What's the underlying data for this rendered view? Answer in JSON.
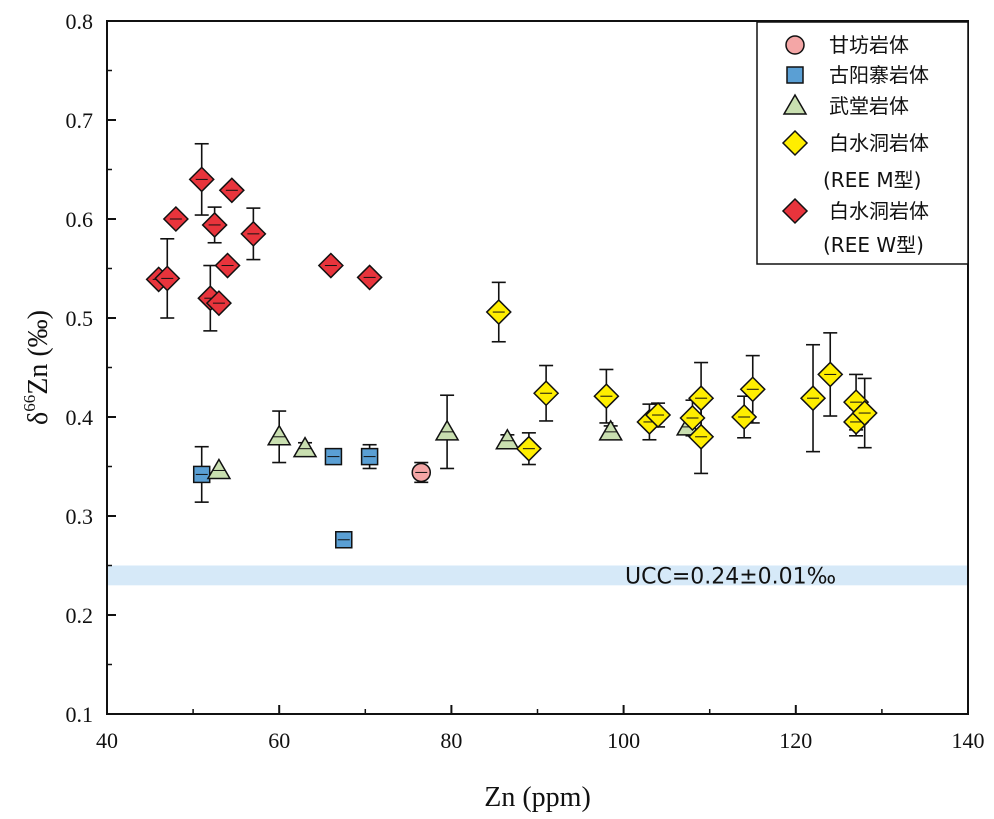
{
  "chart_data": {
    "type": "scatter",
    "xlabel": "Zn (ppm)",
    "ylabel_prefix": "δ",
    "ylabel_sup": "66",
    "ylabel_rest": "Zn (‰)",
    "xlim": [
      40,
      140
    ],
    "ylim": [
      0.1,
      0.8
    ],
    "xticks": [
      40,
      60,
      80,
      100,
      120,
      140
    ],
    "yticks": [
      0.1,
      0.2,
      0.3,
      0.4,
      0.5,
      0.6,
      0.7,
      0.8
    ],
    "xtick_labels": [
      "40",
      "60",
      "80",
      "100",
      "120",
      "140"
    ],
    "ytick_labels": [
      "0.1",
      "0.2",
      "0.3",
      "0.4",
      "0.5",
      "0.6",
      "0.7",
      "0.8"
    ],
    "reference_band": {
      "label": "UCC=0.24±0.01‰",
      "y_low": 0.23,
      "y_high": 0.25,
      "color": "#d6e9f8"
    },
    "series": [
      {
        "name": "甘坊岩体",
        "marker": "circle",
        "color": "#f4a6a6",
        "points": [
          {
            "x": 76.5,
            "y": 0.344,
            "err": 0.01
          }
        ]
      },
      {
        "name": "古阳寨岩体",
        "marker": "square",
        "color": "#5a9fd4",
        "points": [
          {
            "x": 51,
            "y": 0.342,
            "err": 0.028
          },
          {
            "x": 66.3,
            "y": 0.36,
            "err": 0.007
          },
          {
            "x": 70.5,
            "y": 0.36,
            "err": 0.012
          },
          {
            "x": 67.5,
            "y": 0.276,
            "err": 0.007
          }
        ]
      },
      {
        "name": "武堂岩体",
        "marker": "triangle",
        "color": "#c9dfb0",
        "points": [
          {
            "x": 53,
            "y": 0.346,
            "err": 0.0
          },
          {
            "x": 60,
            "y": 0.38,
            "err": 0.026
          },
          {
            "x": 63,
            "y": 0.368,
            "err": 0.006
          },
          {
            "x": 79.5,
            "y": 0.385,
            "err": 0.037
          },
          {
            "x": 86.5,
            "y": 0.376,
            "err": 0.006
          },
          {
            "x": 98.5,
            "y": 0.385,
            "err": 0.006
          },
          {
            "x": 107.5,
            "y": 0.39,
            "err": 0.0
          }
        ]
      },
      {
        "name": "白水洞岩体",
        "name2": "(REE M型)",
        "marker": "diamond",
        "color": "#ffee00",
        "points": [
          {
            "x": 85.5,
            "y": 0.506,
            "err": 0.03
          },
          {
            "x": 89,
            "y": 0.368,
            "err": 0.016
          },
          {
            "x": 91,
            "y": 0.424,
            "err": 0.028
          },
          {
            "x": 98,
            "y": 0.421,
            "err": 0.027
          },
          {
            "x": 103,
            "y": 0.395,
            "err": 0.018
          },
          {
            "x": 104,
            "y": 0.402,
            "err": 0.012
          },
          {
            "x": 108,
            "y": 0.399,
            "err": 0.018
          },
          {
            "x": 109,
            "y": 0.419,
            "err": 0.036
          },
          {
            "x": 109,
            "y": 0.38,
            "err": 0.037
          },
          {
            "x": 114,
            "y": 0.4,
            "err": 0.021
          },
          {
            "x": 115,
            "y": 0.428,
            "err": 0.034
          },
          {
            "x": 122,
            "y": 0.419,
            "err": 0.054
          },
          {
            "x": 124,
            "y": 0.443,
            "err": 0.042
          },
          {
            "x": 127,
            "y": 0.415,
            "err": 0.028
          },
          {
            "x": 127,
            "y": 0.395,
            "err": 0.014
          },
          {
            "x": 128,
            "y": 0.404,
            "err": 0.035
          }
        ]
      },
      {
        "name": "白水洞岩体",
        "name2": "(REE W型)",
        "marker": "diamond",
        "color": "#e8343c",
        "points": [
          {
            "x": 46,
            "y": 0.539,
            "err": 0.0
          },
          {
            "x": 47,
            "y": 0.54,
            "err": 0.04
          },
          {
            "x": 48,
            "y": 0.6,
            "err": 0.0
          },
          {
            "x": 51,
            "y": 0.64,
            "err": 0.036
          },
          {
            "x": 52,
            "y": 0.52,
            "err": 0.033
          },
          {
            "x": 52.5,
            "y": 0.594,
            "err": 0.018
          },
          {
            "x": 53,
            "y": 0.515,
            "err": 0.0
          },
          {
            "x": 54,
            "y": 0.553,
            "err": 0.0
          },
          {
            "x": 54.5,
            "y": 0.629,
            "err": 0.0
          },
          {
            "x": 57,
            "y": 0.585,
            "err": 0.026
          },
          {
            "x": 66,
            "y": 0.553,
            "err": 0.0
          },
          {
            "x": 70.5,
            "y": 0.541,
            "err": 0.0
          }
        ]
      }
    ]
  }
}
